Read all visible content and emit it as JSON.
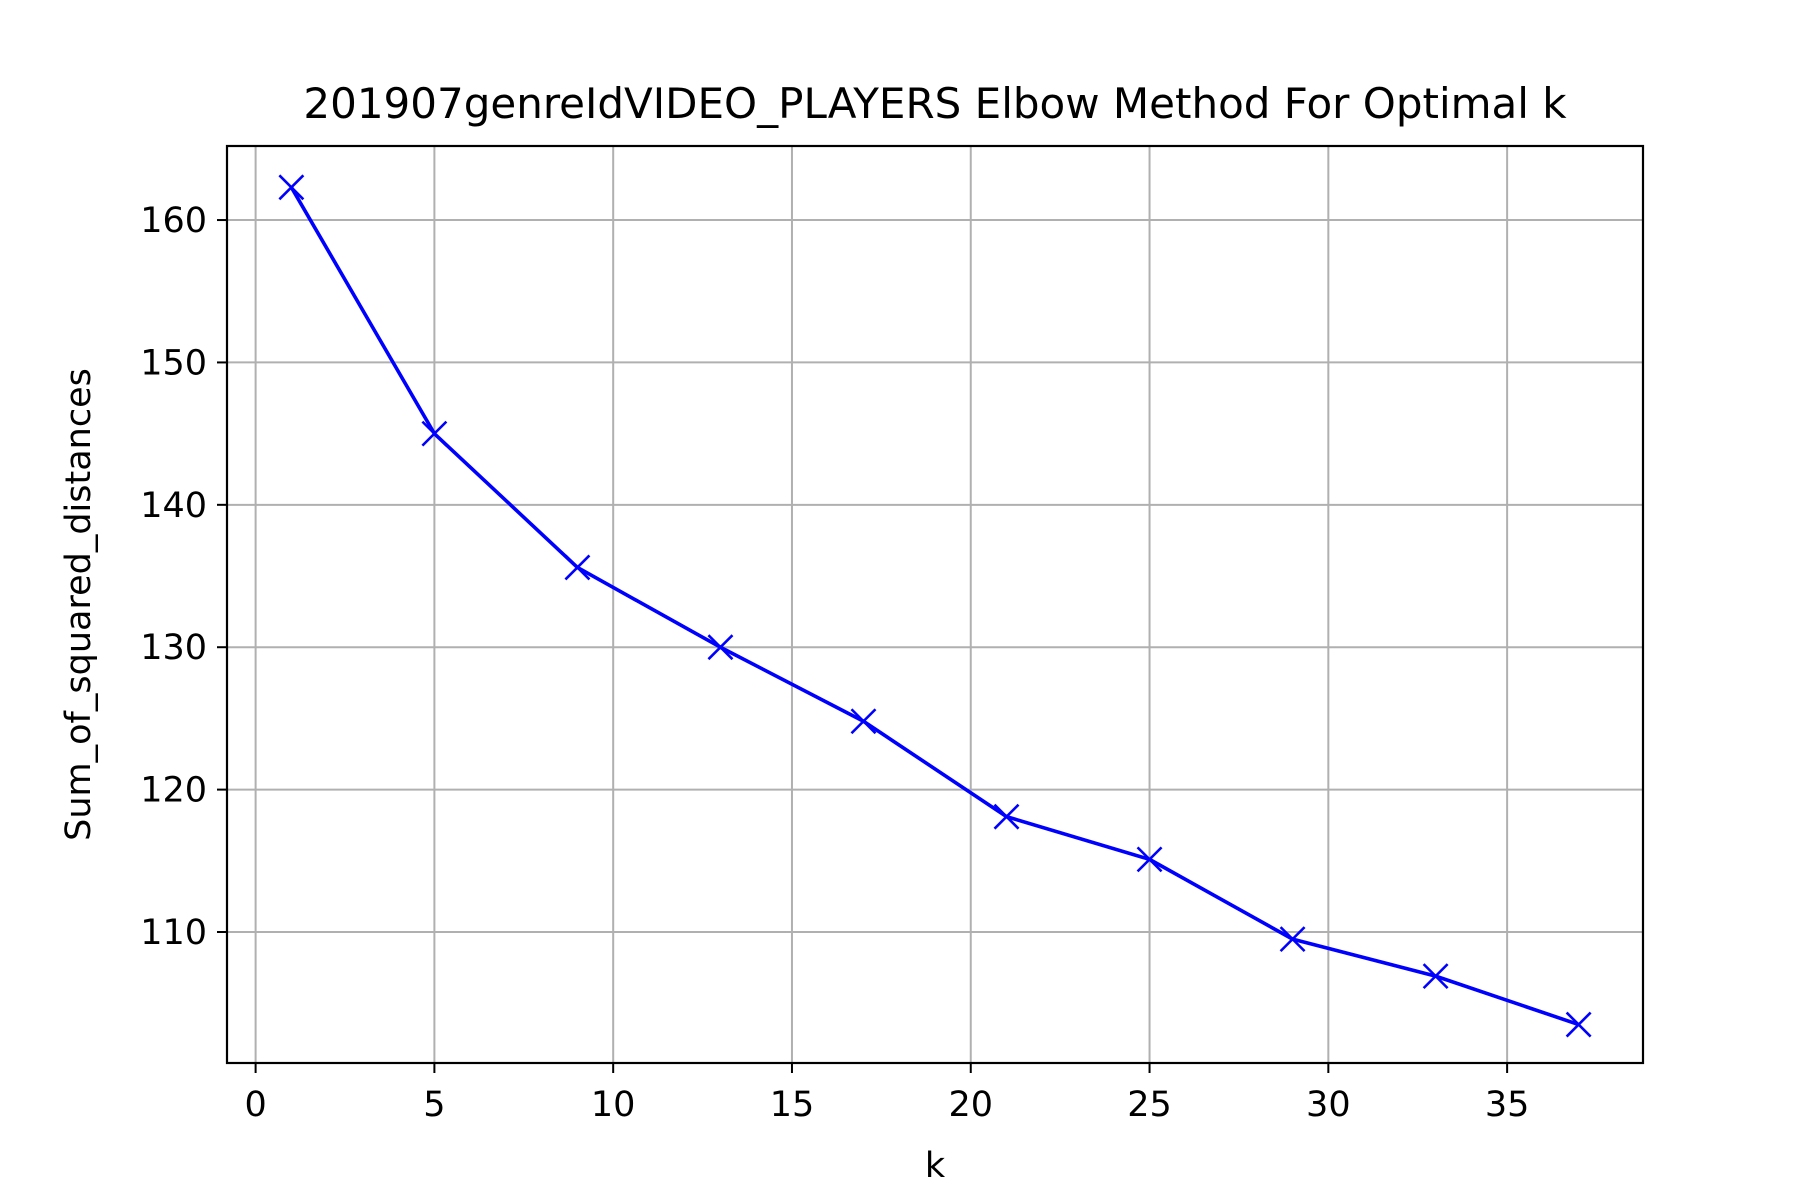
{
  "chart_data": {
    "type": "line",
    "title": "201907genreIdVIDEO_PLAYERS Elbow Method For Optimal k",
    "xlabel": "k",
    "ylabel": "Sum_of_squared_distances",
    "x": [
      1,
      5,
      9,
      13,
      17,
      21,
      25,
      29,
      33,
      37
    ],
    "series": [
      {
        "values": [
          162.3,
          145.0,
          135.6,
          130.0,
          124.8,
          118.1,
          115.1,
          109.5,
          106.9,
          103.5
        ],
        "color": "#0000ff",
        "marker": "x"
      }
    ],
    "xlim": [
      -0.8,
      38.8
    ],
    "ylim": [
      100.8,
      165.2
    ],
    "xticks": [
      0,
      5,
      10,
      15,
      20,
      25,
      30,
      35
    ],
    "yticks": [
      110,
      120,
      130,
      140,
      150,
      160
    ],
    "grid": true
  }
}
